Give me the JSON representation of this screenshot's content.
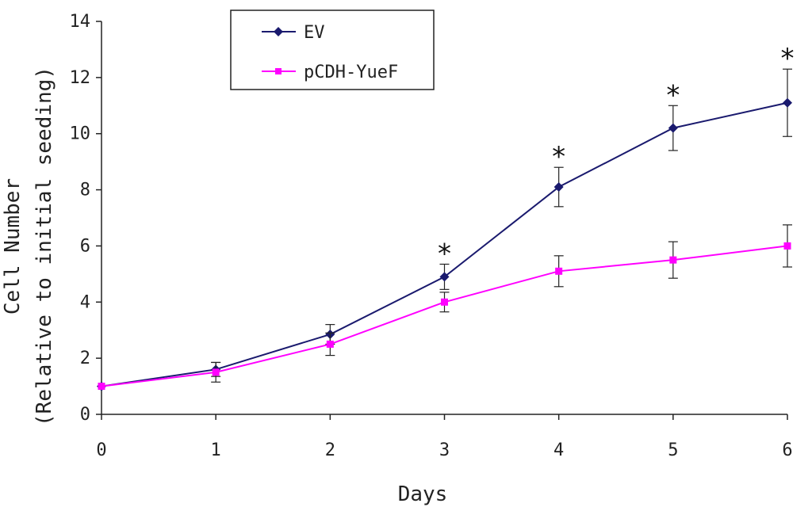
{
  "chart_data": {
    "type": "line",
    "x": [
      0,
      1,
      2,
      3,
      4,
      5,
      6
    ],
    "series": [
      {
        "name": "EV",
        "color": "#1a1a6e",
        "marker": "diamond",
        "values": [
          1.0,
          1.6,
          2.85,
          4.9,
          8.1,
          10.2,
          11.1
        ],
        "errors": [
          0.05,
          0.25,
          0.35,
          0.45,
          0.7,
          0.8,
          1.2
        ]
      },
      {
        "name": "pCDH-YueF",
        "color": "#ff00ff",
        "marker": "square",
        "values": [
          1.0,
          1.5,
          2.5,
          4.0,
          5.1,
          5.5,
          6.0
        ],
        "errors": [
          0.05,
          0.35,
          0.4,
          0.35,
          0.55,
          0.65,
          0.75
        ]
      }
    ],
    "significance": [
      {
        "x": 3,
        "label": "*"
      },
      {
        "x": 4,
        "label": "*"
      },
      {
        "x": 5,
        "label": "*"
      },
      {
        "x": 6,
        "label": "*"
      }
    ],
    "xlabel": "Days",
    "ylabel_line1": "Cell Number",
    "ylabel_line2": "(Relative to initial seeding)",
    "xlim": [
      0,
      6
    ],
    "ylim": [
      0,
      14
    ],
    "xticks": [
      0,
      1,
      2,
      3,
      4,
      5,
      6
    ],
    "yticks": [
      0,
      2,
      4,
      6,
      8,
      10,
      12,
      14
    ],
    "legend_position": "top-left",
    "grid": false
  }
}
